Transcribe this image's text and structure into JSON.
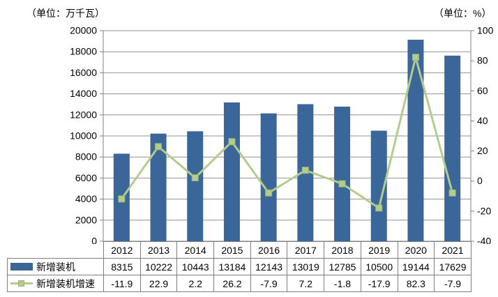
{
  "header": {
    "unit_left": "（单位：万千瓦）",
    "unit_right": "（单位：%）"
  },
  "chart_data": {
    "type": "combo",
    "title": "",
    "categories": [
      "2012",
      "2013",
      "2014",
      "2015",
      "2016",
      "2017",
      "2018",
      "2019",
      "2020",
      "2021"
    ],
    "series": [
      {
        "name": "新增装机",
        "type": "bar",
        "axis": "left",
        "values": [
          8315,
          10222,
          10443,
          13184,
          12143,
          13019,
          12785,
          10500,
          19144,
          17629
        ]
      },
      {
        "name": "新增装机增速",
        "type": "line",
        "axis": "right",
        "values": [
          -11.9,
          22.9,
          2.2,
          26.2,
          -7.9,
          7.2,
          -1.8,
          -17.9,
          82.3,
          -7.9
        ]
      }
    ],
    "left_axis": {
      "unit": "万千瓦",
      "min": 0,
      "max": 20000,
      "step": 2000,
      "tick_labels": [
        "0",
        "2000",
        "4000",
        "6000",
        "8000",
        "10000",
        "12000",
        "14000",
        "16000",
        "18000",
        "20000"
      ]
    },
    "right_axis": {
      "unit": "%",
      "min": -40,
      "max": 100,
      "step": 20,
      "tick_labels": [
        "-40",
        "-20",
        "0",
        "20",
        "40",
        "60",
        "80",
        "100"
      ]
    },
    "grid": true,
    "legend_position": "table-left"
  },
  "table": {
    "year_row": [
      "2012",
      "2013",
      "2014",
      "2015",
      "2016",
      "2017",
      "2018",
      "2019",
      "2020",
      "2021"
    ],
    "rows": [
      {
        "label": "新增装机",
        "cells": [
          "8315",
          "10222",
          "10443",
          "13184",
          "12143",
          "13019",
          "12785",
          "10500",
          "19144",
          "17629"
        ]
      },
      {
        "label": "新增装机增速",
        "cells": [
          "-11.9",
          "22.9",
          "2.2",
          "26.2",
          "-7.9",
          "7.2",
          "-1.8",
          "-17.9",
          "82.3",
          "-7.9"
        ]
      }
    ]
  },
  "colors": {
    "bar": "#3A6699",
    "line": "#B3CC8E",
    "line_border": "#9AB572",
    "grid": "#909090",
    "axis": "#808080",
    "table_border": "#7f7f7f",
    "text": "#000000"
  }
}
